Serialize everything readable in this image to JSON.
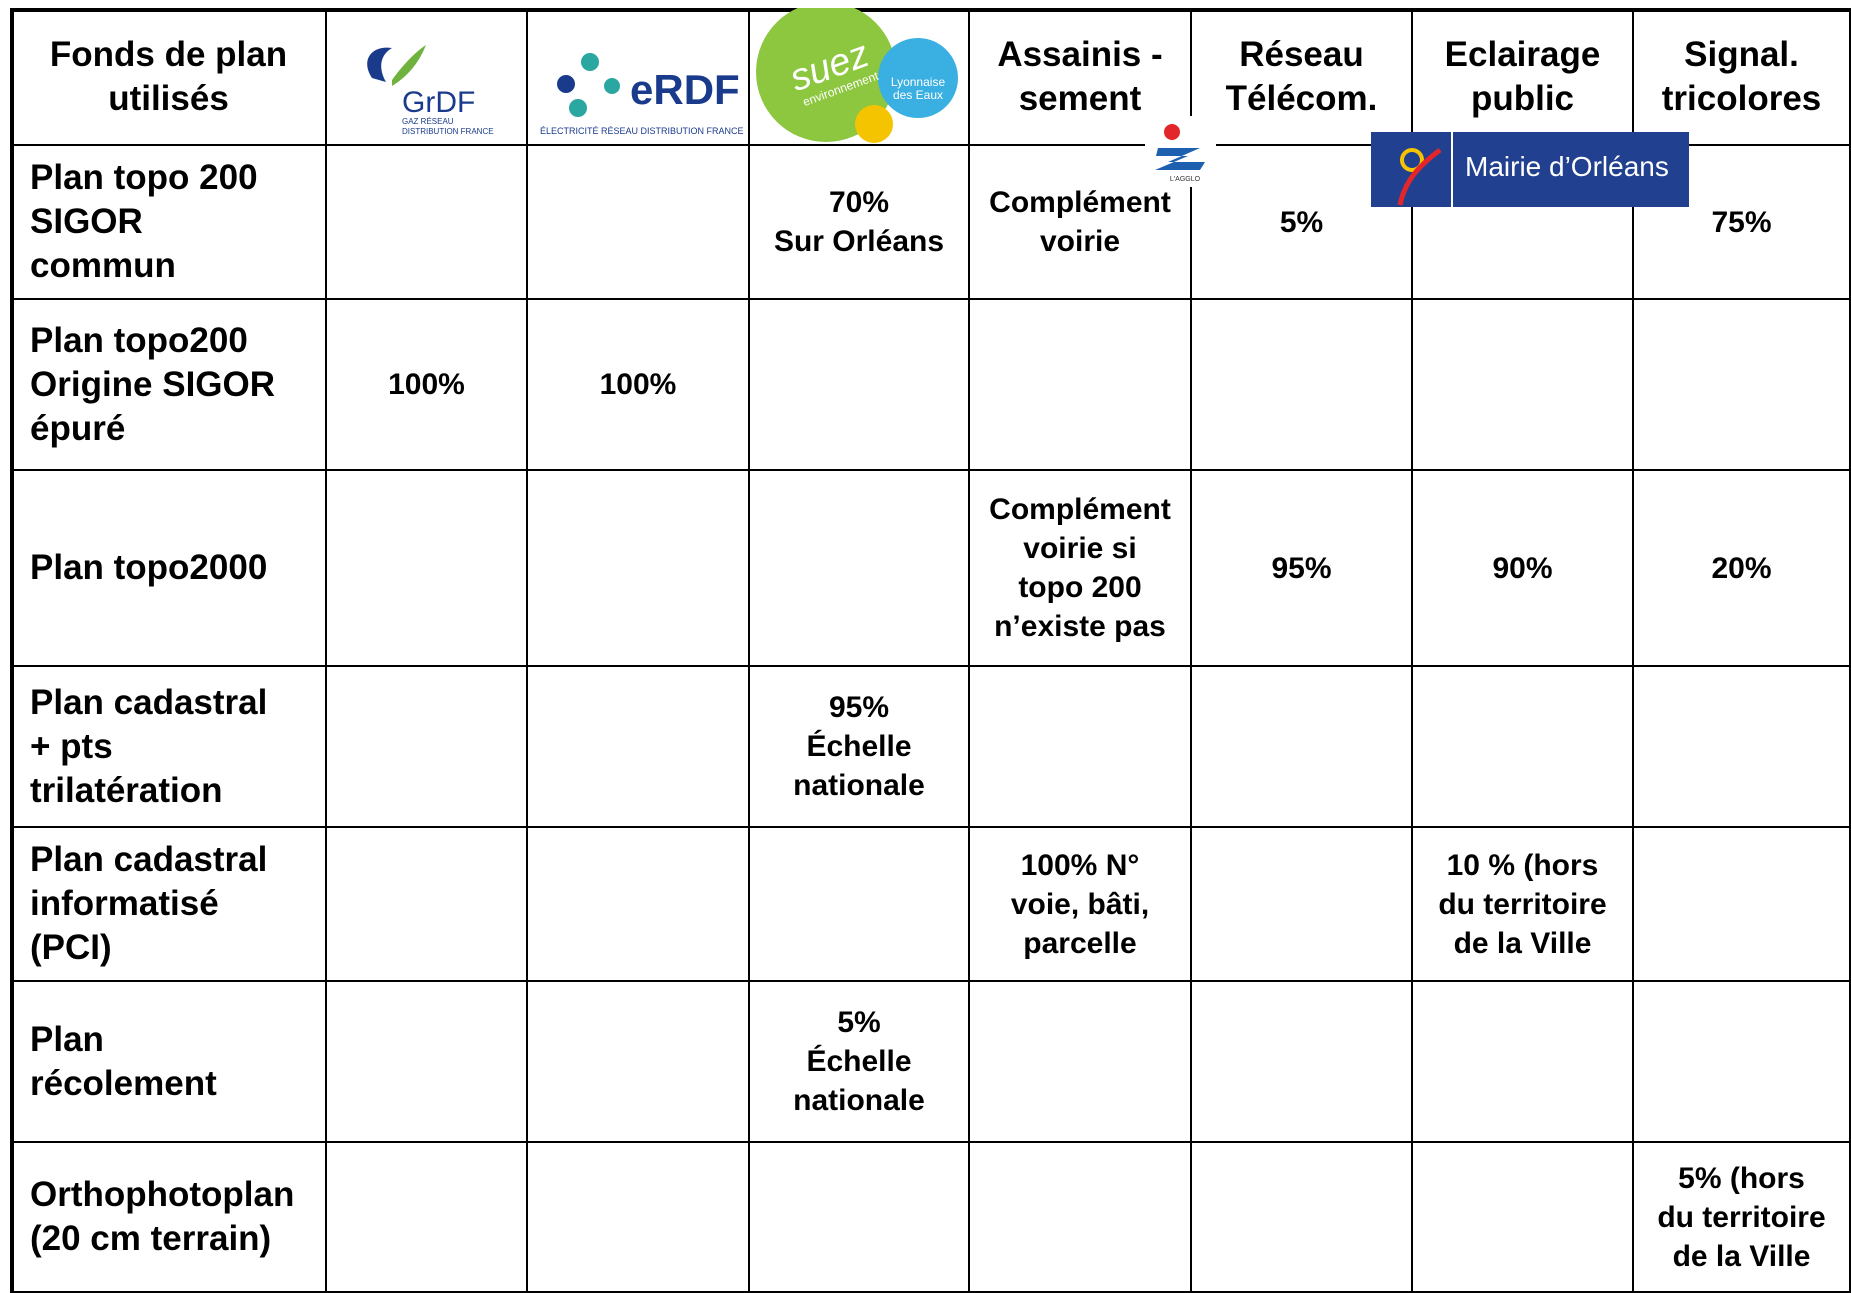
{
  "header": [
    "Fonds de plan\nutilisés",
    null,
    null,
    null,
    "Assainis -\nsement",
    "Réseau\nTélécom.",
    "Eclairage\npublic",
    "Signal.\ntricolores"
  ],
  "logos": {
    "grdf": {
      "name": "GrDF",
      "tagline": "GAZ RÉSEAU\nDISTRIBUTION FRANCE"
    },
    "erdf": {
      "name": "eRDF",
      "tagline": "ÉLECTRICITÉ RÉSEAU DISTRIBUTION FRANCE"
    },
    "suez": {
      "name": "suez",
      "tagline": "environnement",
      "partner": "Lyonnaise\ndes Eaux"
    },
    "agglo": {
      "name": "L'AGGLO"
    },
    "mairie": {
      "name": "Mairie d’Orléans"
    }
  },
  "table": {
    "rows": [
      [
        "Plan topo 200\nSIGOR\ncommun",
        null,
        null,
        "70%\nSur Orléans",
        "Complément\nvoirie",
        "5%",
        null,
        "75%"
      ],
      [
        "Plan topo200\nOrigine SIGOR\népuré",
        "100%",
        "100%",
        null,
        null,
        null,
        null,
        null
      ],
      [
        "Plan topo2000",
        null,
        null,
        null,
        "Complément\nvoirie si\ntopo 200\nn’existe pas",
        "95%",
        "90%",
        "20%"
      ],
      [
        "Plan cadastral\n+ pts\ntrilatération",
        null,
        null,
        "95%\nÉchelle\nnationale",
        null,
        null,
        null,
        null
      ],
      [
        "Plan cadastral\ninformatisé\n(PCI)",
        null,
        null,
        null,
        "100% N°\nvoie, bâti,\nparcelle",
        null,
        "10 % (hors\ndu territoire\nde la Ville",
        null
      ],
      [
        "Plan\nrécolement",
        null,
        null,
        "5%\nÉchelle\nnationale",
        null,
        null,
        null,
        null
      ],
      [
        "Orthophotoplan\n(20 cm terrain)",
        null,
        null,
        null,
        null,
        null,
        null,
        "5% (hors\ndu territoire\nde la Ville"
      ]
    ]
  }
}
